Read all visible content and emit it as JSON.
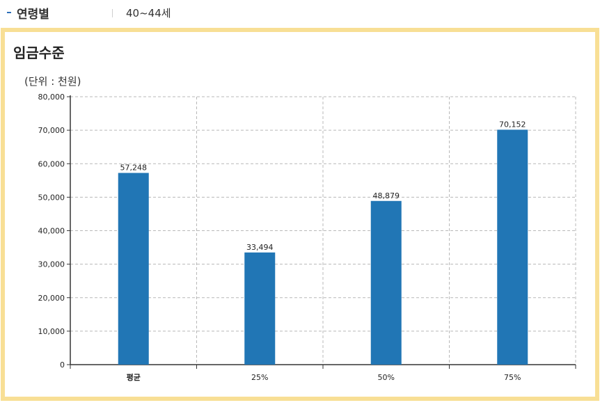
{
  "header": {
    "label": "연령별",
    "value": "40~44세"
  },
  "panel": {
    "title": "임금수준",
    "unit": "(단위 : 천원)"
  },
  "colors": {
    "bar": "#2176b5",
    "grid": "#b8b8b8",
    "axis": "#333333",
    "panel_border": "#f8df95",
    "header_dash": "#2d6fb8"
  },
  "chart_data": {
    "type": "bar",
    "title": "임금수준",
    "ylabel": "(단위 : 천원)",
    "xlabel": "",
    "categories": [
      "평균",
      "25%",
      "50%",
      "75%"
    ],
    "values": [
      57248,
      33494,
      48879,
      70152
    ],
    "value_labels": [
      "57,248",
      "33,494",
      "48,879",
      "70,152"
    ],
    "ylim": [
      0,
      80000
    ],
    "yticks": [
      0,
      10000,
      20000,
      30000,
      40000,
      50000,
      60000,
      70000,
      80000
    ],
    "ytick_labels": [
      "0",
      "10,000",
      "20,000",
      "30,000",
      "40,000",
      "50,000",
      "60,000",
      "70,000",
      "80,000"
    ],
    "grid": true,
    "legend": "none"
  }
}
